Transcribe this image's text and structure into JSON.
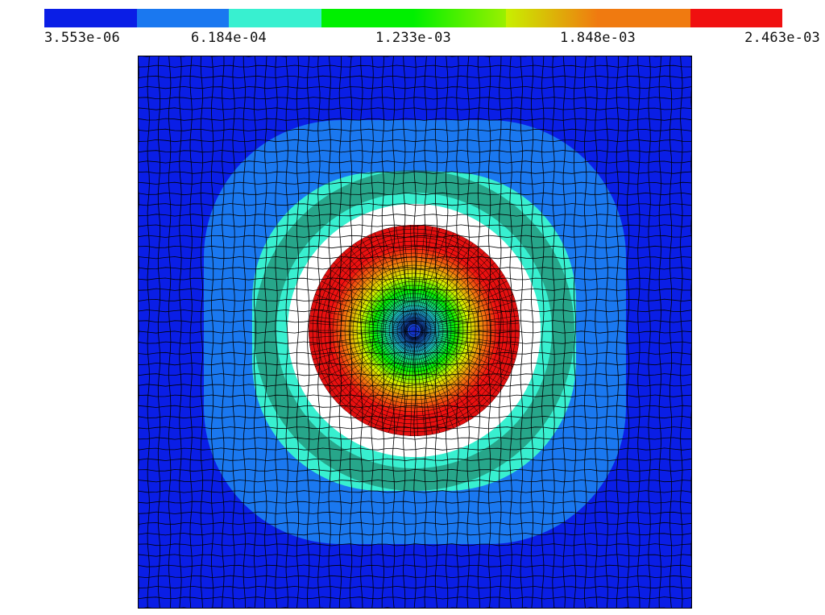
{
  "colorbar": {
    "colors": [
      "#0a1ee6",
      "#1a78f0",
      "#38f0d0",
      "#00f000",
      "#9af000",
      "#f07a10",
      "#f01010"
    ],
    "tick_labels": [
      "3.553e-06",
      "6.184e-04",
      "1.233e-03",
      "1.848e-03",
      "2.463e-03"
    ]
  },
  "field_colors": {
    "outer": "#0a1ee6",
    "band_light_blue": "#1a78f0",
    "band_cyan": "#38f0d0",
    "gap": "#ffffff",
    "disc_edge": "#f01010",
    "disc_orange": "#f07a10",
    "disc_yellow": "#d6f000",
    "disc_green": "#00f000",
    "disc_cyan": "#20c8c8",
    "disc_center": "#1020c0",
    "mesh_line": "#000000"
  },
  "mesh": {
    "type": "quadrilateral finite element mesh",
    "outer_domain": "square",
    "inner_feature": "circular annular gap around central disc"
  }
}
